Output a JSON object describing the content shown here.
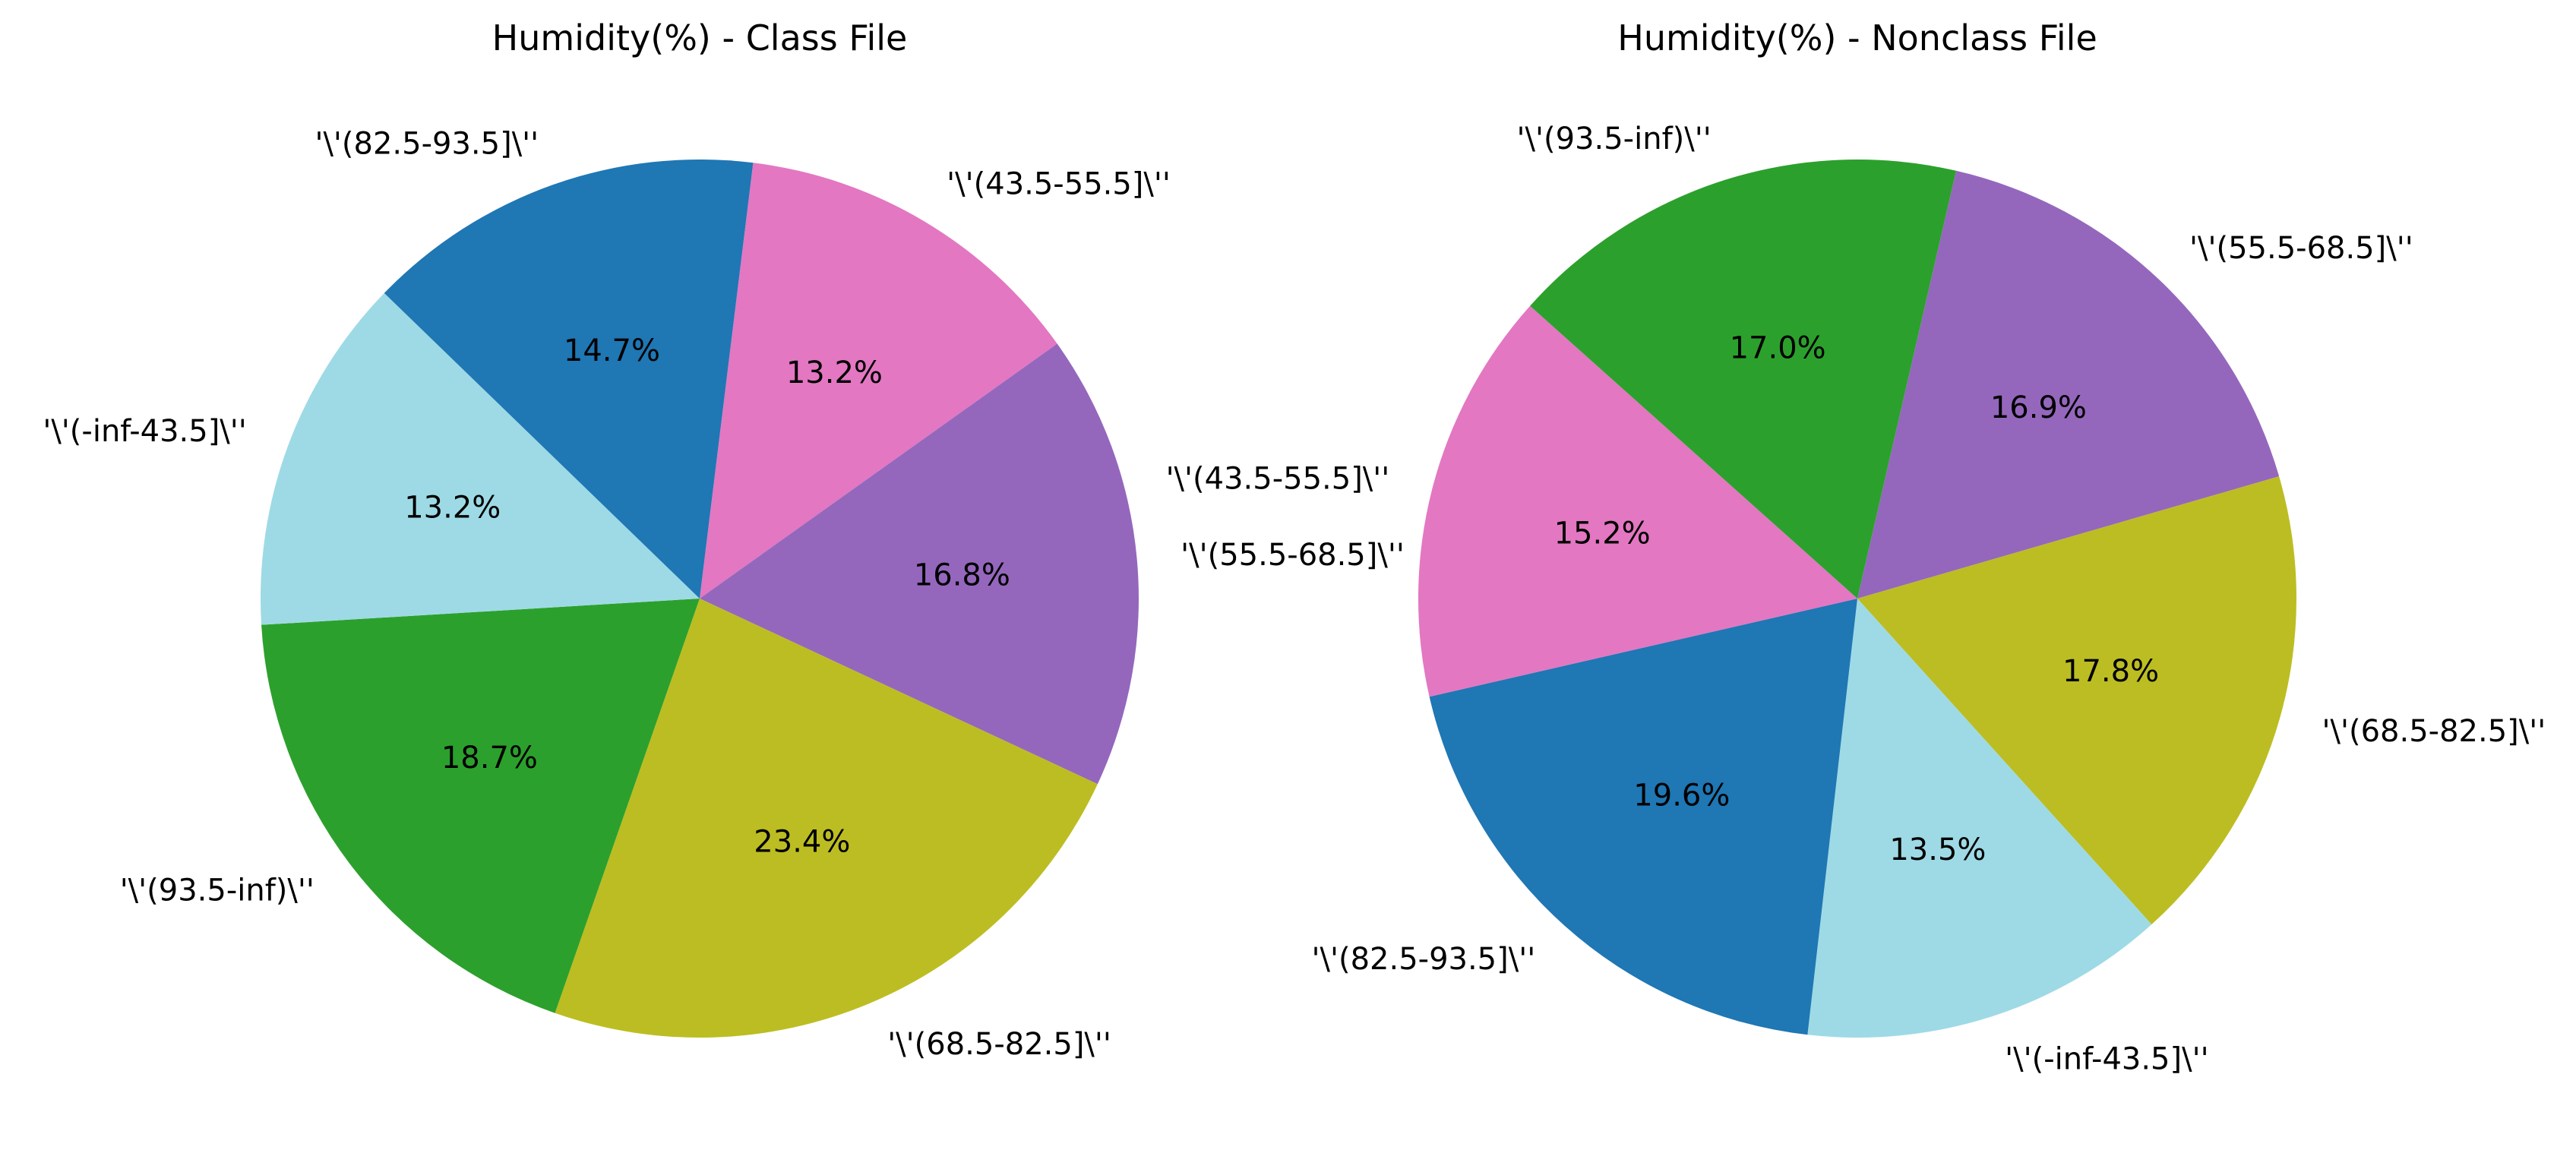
{
  "chart_data": [
    {
      "type": "pie",
      "title": "Humidity(%) - Class File",
      "xlabel": "",
      "ylabel": "",
      "start_angle_deg": 83,
      "slices": [
        {
          "label": "'\\'(43.5-55.5]\\''",
          "value": 13.2,
          "pct_label": "13.2%",
          "color": "#e377c2"
        },
        {
          "label": "'\\'(55.5-68.5]\\''",
          "value": 16.8,
          "pct_label": "16.8%",
          "color": "#9467bd"
        },
        {
          "label": "'\\'(68.5-82.5]\\''",
          "value": 23.4,
          "pct_label": "23.4%",
          "color": "#bcbd22"
        },
        {
          "label": "'\\'(93.5-inf)\\''",
          "value": 18.7,
          "pct_label": "18.7%",
          "color": "#2ca02c"
        },
        {
          "label": "'\\'(-inf-43.5]\\''",
          "value": 13.2,
          "pct_label": "13.2%",
          "color": "#9edae5"
        },
        {
          "label": "'\\'(82.5-93.5]\\''",
          "value": 14.7,
          "pct_label": "14.7%",
          "color": "#1f77b4"
        }
      ]
    },
    {
      "type": "pie",
      "title": "Humidity(%) - Nonclass File",
      "xlabel": "",
      "ylabel": "",
      "start_angle_deg": 77,
      "slices": [
        {
          "label": "'\\'(55.5-68.5]\\''",
          "value": 16.9,
          "pct_label": "16.9%",
          "color": "#9467bd"
        },
        {
          "label": "'\\'(68.5-82.5]\\''",
          "value": 17.8,
          "pct_label": "17.8%",
          "color": "#bcbd22"
        },
        {
          "label": "'\\'(-inf-43.5]\\''",
          "value": 13.5,
          "pct_label": "13.5%",
          "color": "#9edae5"
        },
        {
          "label": "'\\'(82.5-93.5]\\''",
          "value": 19.6,
          "pct_label": "19.6%",
          "color": "#1f77b4"
        },
        {
          "label": "'\\'(43.5-55.5]\\''",
          "value": 15.2,
          "pct_label": "15.2%",
          "color": "#e377c2"
        },
        {
          "label": "'\\'(93.5-inf)\\''",
          "value": 17.0,
          "pct_label": "17.0%",
          "color": "#2ca02c"
        }
      ]
    }
  ]
}
